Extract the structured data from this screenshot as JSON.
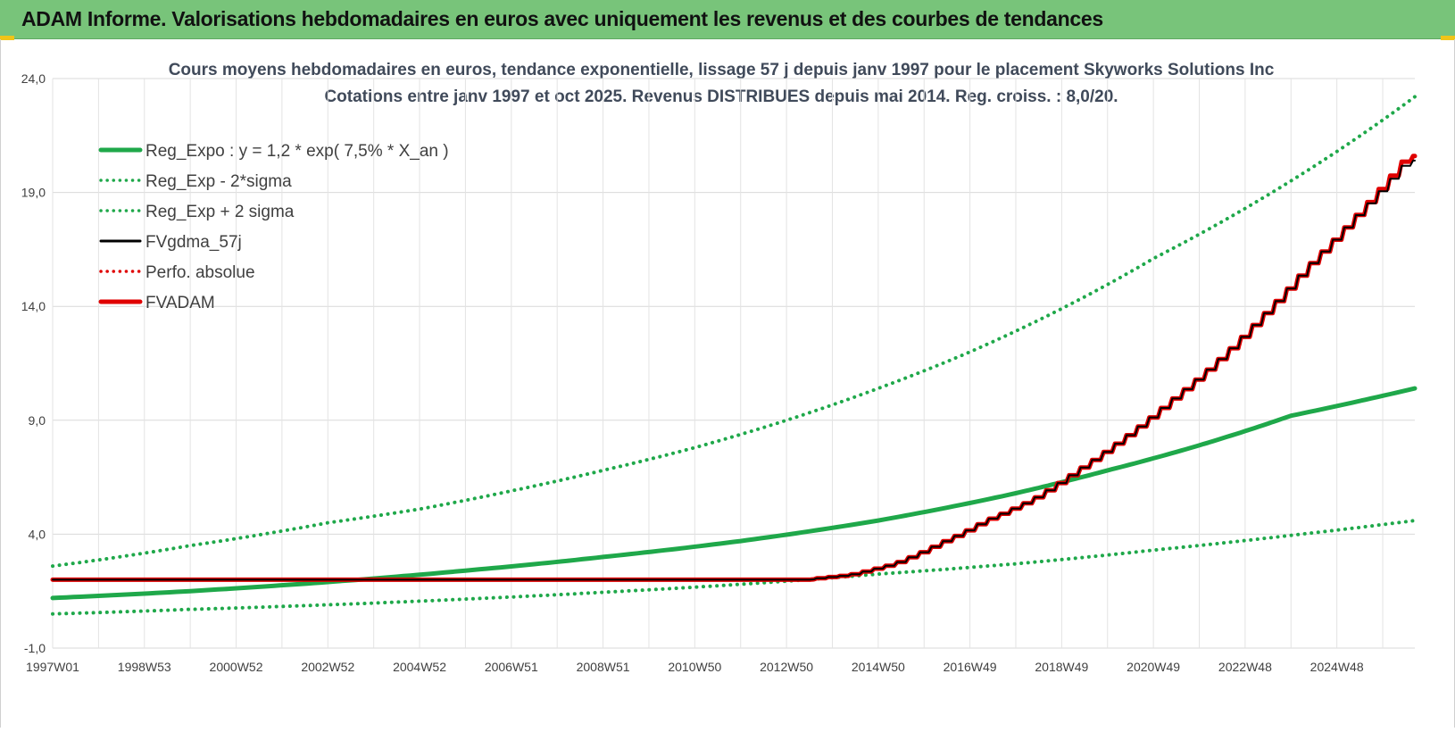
{
  "banner": {
    "title": "ADAM Informe. Valorisations hebdomadaires en euros avec uniquement les revenus et des courbes de tendances",
    "background": "#78c47a"
  },
  "chart_data": {
    "type": "line",
    "title": "Cours moyens hebdomadaires en euros, tendance exponentielle, lissage 57 j depuis janv 1997 pour le placement Skyworks Solutions Inc",
    "subtitle": "Cotations entre janv 1997 et oct 2025. Revenus DISTRIBUES depuis mai 2014.  Reg. croiss. : 8,0/20.",
    "xlabel": "",
    "ylabel": "",
    "x_range": [
      1997.0,
      2026.7
    ],
    "ylim": [
      -1.0,
      24.0
    ],
    "y_ticks": [
      "-1,0",
      "4,0",
      "9,0",
      "14,0",
      "19,0",
      "24,0"
    ],
    "y_tick_values": [
      -1,
      4,
      9,
      14,
      19,
      24
    ],
    "x_ticks": [
      "1997W01",
      "1998W53",
      "2000W52",
      "2002W52",
      "2004W52",
      "2006W51",
      "2008W51",
      "2010W50",
      "2012W50",
      "2014W50",
      "2016W49",
      "2018W49",
      "2020W49",
      "2022W48",
      "2024W48"
    ],
    "x_tick_values": [
      1997.0,
      1999.0,
      2001.0,
      2003.0,
      2005.0,
      2007.0,
      2009.0,
      2011.0,
      2013.0,
      2015.0,
      2017.0,
      2019.0,
      2021.0,
      2023.0,
      2025.0
    ],
    "grid": true,
    "legend_position": "top-left",
    "series": [
      {
        "name": "Reg_Expo : y = 1,2 * exp( 7,5% *  X_an )",
        "color": "#1fa84a",
        "style": "solid",
        "x": [
          1997.0,
          2000.0,
          2003.0,
          2006.0,
          2009.0,
          2012.0,
          2015.0,
          2018.0,
          2020.0,
          2022.0,
          2024.0,
          2026.7
        ],
        "y": [
          1.2,
          1.5,
          1.9,
          2.4,
          3.0,
          3.7,
          4.6,
          5.8,
          6.8,
          7.9,
          9.2,
          10.4
        ]
      },
      {
        "name": "Reg_Exp - 2*sigma",
        "color": "#1fa84a",
        "style": "dotted",
        "x": [
          1997.0,
          2000.0,
          2003.0,
          2006.0,
          2009.0,
          2012.0,
          2015.0,
          2018.0,
          2021.0,
          2024.0,
          2026.7
        ],
        "y": [
          0.5,
          0.7,
          0.9,
          1.15,
          1.45,
          1.8,
          2.25,
          2.7,
          3.3,
          3.95,
          4.6
        ]
      },
      {
        "name": "Reg_Exp + 2 sigma",
        "color": "#1fa84a",
        "style": "dotted",
        "x": [
          1997.0,
          2000.0,
          2003.0,
          2005.0,
          2007.0,
          2009.0,
          2011.0,
          2013.0,
          2015.0,
          2017.0,
          2019.0,
          2021.0,
          2023.0,
          2025.0,
          2026.7
        ],
        "y": [
          2.6,
          3.5,
          4.5,
          5.1,
          5.9,
          6.8,
          7.8,
          9.0,
          10.4,
          12.0,
          13.9,
          16.1,
          18.3,
          20.8,
          23.2
        ]
      },
      {
        "name": "FVgdma_57j",
        "color": "#000000",
        "style": "solid",
        "x": [
          1997.0,
          2013.5,
          2014.5,
          2015.5,
          2016.5,
          2017.5,
          2018.5,
          2019.5,
          2020.5,
          2021.5,
          2022.5,
          2023.5,
          2024.5,
          2025.5,
          2026.7
        ],
        "y": [
          2.0,
          2.0,
          2.2,
          2.7,
          3.6,
          4.6,
          5.5,
          6.8,
          8.2,
          9.8,
          11.5,
          13.5,
          15.7,
          17.8,
          20.4
        ]
      },
      {
        "name": "Perfo. absolue",
        "color": "#e00000",
        "style": "dotted",
        "x": [],
        "y": []
      },
      {
        "name": "FVADAM",
        "color": "#e00000",
        "style": "solid",
        "x": [
          1997.0,
          2013.5,
          2014.5,
          2015.5,
          2016.5,
          2017.5,
          2018.5,
          2019.5,
          2020.5,
          2021.5,
          2022.5,
          2023.5,
          2024.5,
          2025.5,
          2026.7
        ],
        "y": [
          2.0,
          2.0,
          2.2,
          2.7,
          3.6,
          4.6,
          5.5,
          6.8,
          8.2,
          9.8,
          11.5,
          13.5,
          15.7,
          17.8,
          20.6
        ]
      }
    ]
  }
}
